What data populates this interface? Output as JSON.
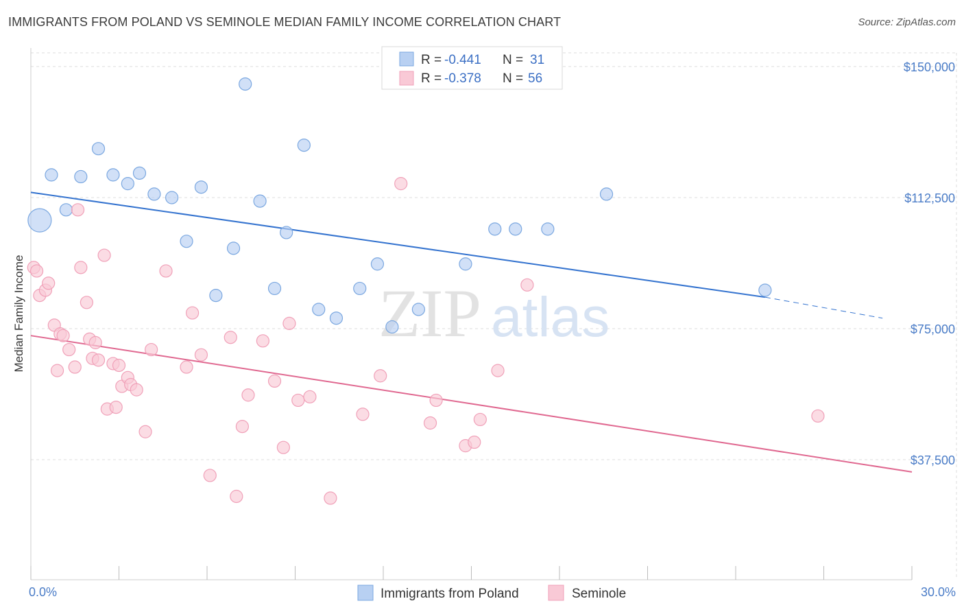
{
  "title": "IMMIGRANTS FROM POLAND VS SEMINOLE MEDIAN FAMILY INCOME CORRELATION CHART",
  "source": "Source: ZipAtlas.com",
  "watermark": {
    "zip": "ZIP",
    "atlas": "atlas"
  },
  "chart_data": {
    "type": "scatter",
    "ylabel": "Median Family Income",
    "xlim": [
      0,
      30
    ],
    "ylim": [
      0,
      155000
    ],
    "x_tick_labels": {
      "left": "0.0%",
      "right": "30.0%"
    },
    "y_ticks": [
      {
        "value": 150000,
        "label": "$150,000"
      },
      {
        "value": 112500,
        "label": "$112,500"
      },
      {
        "value": 75000,
        "label": "$75,000"
      },
      {
        "value": 37500,
        "label": "$37,500"
      }
    ],
    "grid": true,
    "legend_position": "top-center",
    "series": [
      {
        "name": "Immigrants from Poland",
        "color": "#7aa7e0",
        "fill": "#b8d0f2",
        "line_color": "#3473cf",
        "R": "-0.441",
        "N": "31",
        "trend": {
          "x0": 0.0,
          "y0": 114000,
          "x1": 25.0,
          "y1": 84000,
          "dash_x1": 29.0,
          "dash_y1": 78000
        },
        "points": [
          {
            "x": 0.3,
            "y": 106000,
            "big": true
          },
          {
            "x": 0.7,
            "y": 119000
          },
          {
            "x": 1.2,
            "y": 109000
          },
          {
            "x": 1.7,
            "y": 118500
          },
          {
            "x": 2.3,
            "y": 126500
          },
          {
            "x": 2.8,
            "y": 119000
          },
          {
            "x": 3.3,
            "y": 116500
          },
          {
            "x": 3.7,
            "y": 119500
          },
          {
            "x": 4.2,
            "y": 113500
          },
          {
            "x": 4.8,
            "y": 112500
          },
          {
            "x": 5.3,
            "y": 100000
          },
          {
            "x": 5.8,
            "y": 115500
          },
          {
            "x": 6.3,
            "y": 84500
          },
          {
            "x": 6.9,
            "y": 98000
          },
          {
            "x": 7.3,
            "y": 145000
          },
          {
            "x": 7.8,
            "y": 111500
          },
          {
            "x": 8.3,
            "y": 86500
          },
          {
            "x": 8.7,
            "y": 102500
          },
          {
            "x": 9.3,
            "y": 127500
          },
          {
            "x": 9.8,
            "y": 80500
          },
          {
            "x": 10.4,
            "y": 78000
          },
          {
            "x": 11.2,
            "y": 86500
          },
          {
            "x": 11.8,
            "y": 93500
          },
          {
            "x": 12.3,
            "y": 75500
          },
          {
            "x": 13.2,
            "y": 80500
          },
          {
            "x": 14.8,
            "y": 93500
          },
          {
            "x": 15.8,
            "y": 103500
          },
          {
            "x": 16.5,
            "y": 103500
          },
          {
            "x": 17.6,
            "y": 103500
          },
          {
            "x": 19.6,
            "y": 113500
          },
          {
            "x": 25.0,
            "y": 86000
          }
        ]
      },
      {
        "name": "Seminole",
        "color": "#f0a0b8",
        "fill": "#f9c9d6",
        "line_color": "#e06890",
        "R": "-0.378",
        "N": "56",
        "trend": {
          "x0": 0.0,
          "y0": 73000,
          "x1": 30.0,
          "y1": 34000
        },
        "points": [
          {
            "x": 0.1,
            "y": 92500
          },
          {
            "x": 0.2,
            "y": 91500
          },
          {
            "x": 0.3,
            "y": 84500
          },
          {
            "x": 0.5,
            "y": 86000
          },
          {
            "x": 0.6,
            "y": 88000
          },
          {
            "x": 0.8,
            "y": 76000
          },
          {
            "x": 0.9,
            "y": 63000
          },
          {
            "x": 1.0,
            "y": 73500
          },
          {
            "x": 1.1,
            "y": 73000
          },
          {
            "x": 1.3,
            "y": 69000
          },
          {
            "x": 1.5,
            "y": 64000
          },
          {
            "x": 1.6,
            "y": 109000
          },
          {
            "x": 1.7,
            "y": 92500
          },
          {
            "x": 1.9,
            "y": 82500
          },
          {
            "x": 2.0,
            "y": 72000
          },
          {
            "x": 2.1,
            "y": 66500
          },
          {
            "x": 2.2,
            "y": 71000
          },
          {
            "x": 2.3,
            "y": 66000
          },
          {
            "x": 2.5,
            "y": 96000
          },
          {
            "x": 2.6,
            "y": 52000
          },
          {
            "x": 2.8,
            "y": 65000
          },
          {
            "x": 2.9,
            "y": 52500
          },
          {
            "x": 3.0,
            "y": 64500
          },
          {
            "x": 3.1,
            "y": 58500
          },
          {
            "x": 3.3,
            "y": 61000
          },
          {
            "x": 3.4,
            "y": 59000
          },
          {
            "x": 3.6,
            "y": 57500
          },
          {
            "x": 3.9,
            "y": 45500
          },
          {
            "x": 4.1,
            "y": 69000
          },
          {
            "x": 4.6,
            "y": 91500
          },
          {
            "x": 5.3,
            "y": 64000
          },
          {
            "x": 5.5,
            "y": 79500
          },
          {
            "x": 5.8,
            "y": 67500
          },
          {
            "x": 6.1,
            "y": 33000
          },
          {
            "x": 6.8,
            "y": 72500
          },
          {
            "x": 7.0,
            "y": 27000
          },
          {
            "x": 7.2,
            "y": 47000
          },
          {
            "x": 7.4,
            "y": 56000
          },
          {
            "x": 7.9,
            "y": 71500
          },
          {
            "x": 8.3,
            "y": 60000
          },
          {
            "x": 8.6,
            "y": 41000
          },
          {
            "x": 8.8,
            "y": 76500
          },
          {
            "x": 9.1,
            "y": 54500
          },
          {
            "x": 9.5,
            "y": 55500
          },
          {
            "x": 10.2,
            "y": 26500
          },
          {
            "x": 11.3,
            "y": 50500
          },
          {
            "x": 11.9,
            "y": 61500
          },
          {
            "x": 12.6,
            "y": 116500
          },
          {
            "x": 13.6,
            "y": 48000
          },
          {
            "x": 13.8,
            "y": 54500
          },
          {
            "x": 14.8,
            "y": 41500
          },
          {
            "x": 15.1,
            "y": 42500
          },
          {
            "x": 15.3,
            "y": 49000
          },
          {
            "x": 15.9,
            "y": 63000
          },
          {
            "x": 16.9,
            "y": 87500
          },
          {
            "x": 26.8,
            "y": 50000
          }
        ]
      }
    ]
  }
}
